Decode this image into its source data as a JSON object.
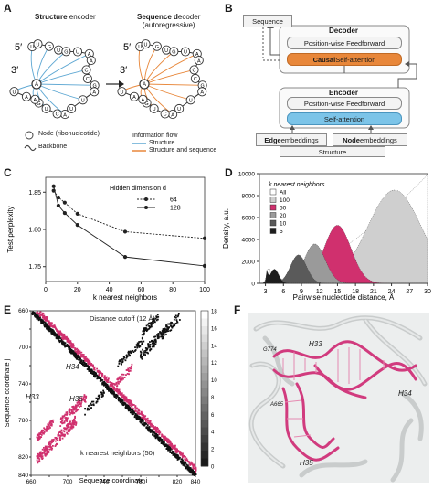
{
  "panels": {
    "A": {
      "label": "A",
      "title_left_bold": "Structure",
      "title_left_rest": " encoder",
      "title_right_bold": "Sequence d",
      "title_right_rest": "ecoder",
      "title_right_sub": "(autoregressive)",
      "five_prime": "5′",
      "three_prime": "3′",
      "nodes_left": [
        "U",
        "U",
        "G",
        "U",
        "G",
        "U",
        "A",
        "A",
        "C",
        "C",
        "G",
        "A",
        "U",
        "U",
        "A",
        "C",
        "U",
        "G",
        "A",
        "A",
        "U"
      ],
      "legend": {
        "node": "Node (ribonucleotide)",
        "backbone": "Backbone",
        "info_flow_title": "Information flow",
        "structure": "Structure",
        "structure_and_sequence": "Structure and sequence"
      },
      "colors": {
        "structure": "#5fa8d3",
        "structure_and_sequence": "#e8873a"
      }
    },
    "B": {
      "label": "B",
      "sequence": "Sequence",
      "decoder": "Decoder",
      "decoder_ff": "Position-wise Feedforward",
      "causal_bold": "Causal",
      "causal_rest": " Self-attention",
      "encoder": "Encoder",
      "encoder_ff": "Position-wise Feedforward",
      "self_attention": "Self-attention",
      "edge_bold": "Edge",
      "edge_rest": " embeddings",
      "node_bold": "Node",
      "node_rest": " embeddings",
      "structure": "Structure",
      "colors": {
        "causal": "#e8873a",
        "self_attention": "#7cc4e8"
      }
    },
    "C": {
      "label": "C"
    },
    "D": {
      "label": "D"
    },
    "E": {
      "label": "E",
      "distance_cutoff": "Distance cutoff (12 Å)",
      "knn": "k nearest neighbors (50)",
      "h34": "H34",
      "h33": "H33",
      "h35": "H35",
      "ylabel": "Sequence coordinate j",
      "xlabel": "Sequence coordinate i",
      "ticks": [
        "660",
        "680",
        "700",
        "720",
        "740",
        "760",
        "780",
        "800",
        "820",
        "840"
      ],
      "cbar_ticks": [
        "0",
        "2",
        "4",
        "6",
        "8",
        "10",
        "12",
        "14",
        "16",
        "18"
      ]
    },
    "F": {
      "label": "F",
      "h33": "H33",
      "h34": "H34",
      "h35": "H35",
      "g774": "G774",
      "a665": "A665"
    }
  },
  "chart_data": [
    {
      "type": "line",
      "panel": "C",
      "xlabel": "k nearest neighbors",
      "ylabel": "Test perplexity",
      "xlim": [
        0,
        100
      ],
      "ylim": [
        1.73,
        1.87
      ],
      "xticks": [
        0,
        20,
        40,
        60,
        80,
        100
      ],
      "yticks": [
        1.75,
        1.8,
        1.85
      ],
      "legend_title": "Hidden dimension d",
      "series": [
        {
          "name": "64",
          "x": [
            5,
            8,
            12,
            20,
            50,
            100
          ],
          "y": [
            1.852,
            1.843,
            1.836,
            1.821,
            1.797,
            1.788
          ],
          "style": "dashed"
        },
        {
          "name": "128",
          "x": [
            5,
            8,
            12,
            20,
            50,
            100
          ],
          "y": [
            1.858,
            1.832,
            1.822,
            1.806,
            1.763,
            1.751
          ],
          "style": "solid"
        }
      ]
    },
    {
      "type": "area",
      "panel": "D",
      "xlabel": "Pairwise nucleotide distance, Å",
      "ylabel": "Density, a.u.",
      "xlim": [
        2,
        30
      ],
      "ylim": [
        0,
        10000
      ],
      "xticks": [
        3,
        6,
        9,
        12,
        15,
        18,
        21,
        24,
        27,
        30
      ],
      "yticks": [
        0,
        2000,
        4000,
        6000,
        8000,
        10000
      ],
      "legend_title": "k nearest neighbors",
      "series": [
        {
          "name": "All",
          "color": "#ffffff"
        },
        {
          "name": "100",
          "color": "#cfcfcf"
        },
        {
          "name": "50",
          "color": "#d0306e"
        },
        {
          "name": "20",
          "color": "#9a9a9a"
        },
        {
          "name": "10",
          "color": "#5a5a5a"
        },
        {
          "name": "5",
          "color": "#1e1e1e"
        }
      ]
    }
  ]
}
